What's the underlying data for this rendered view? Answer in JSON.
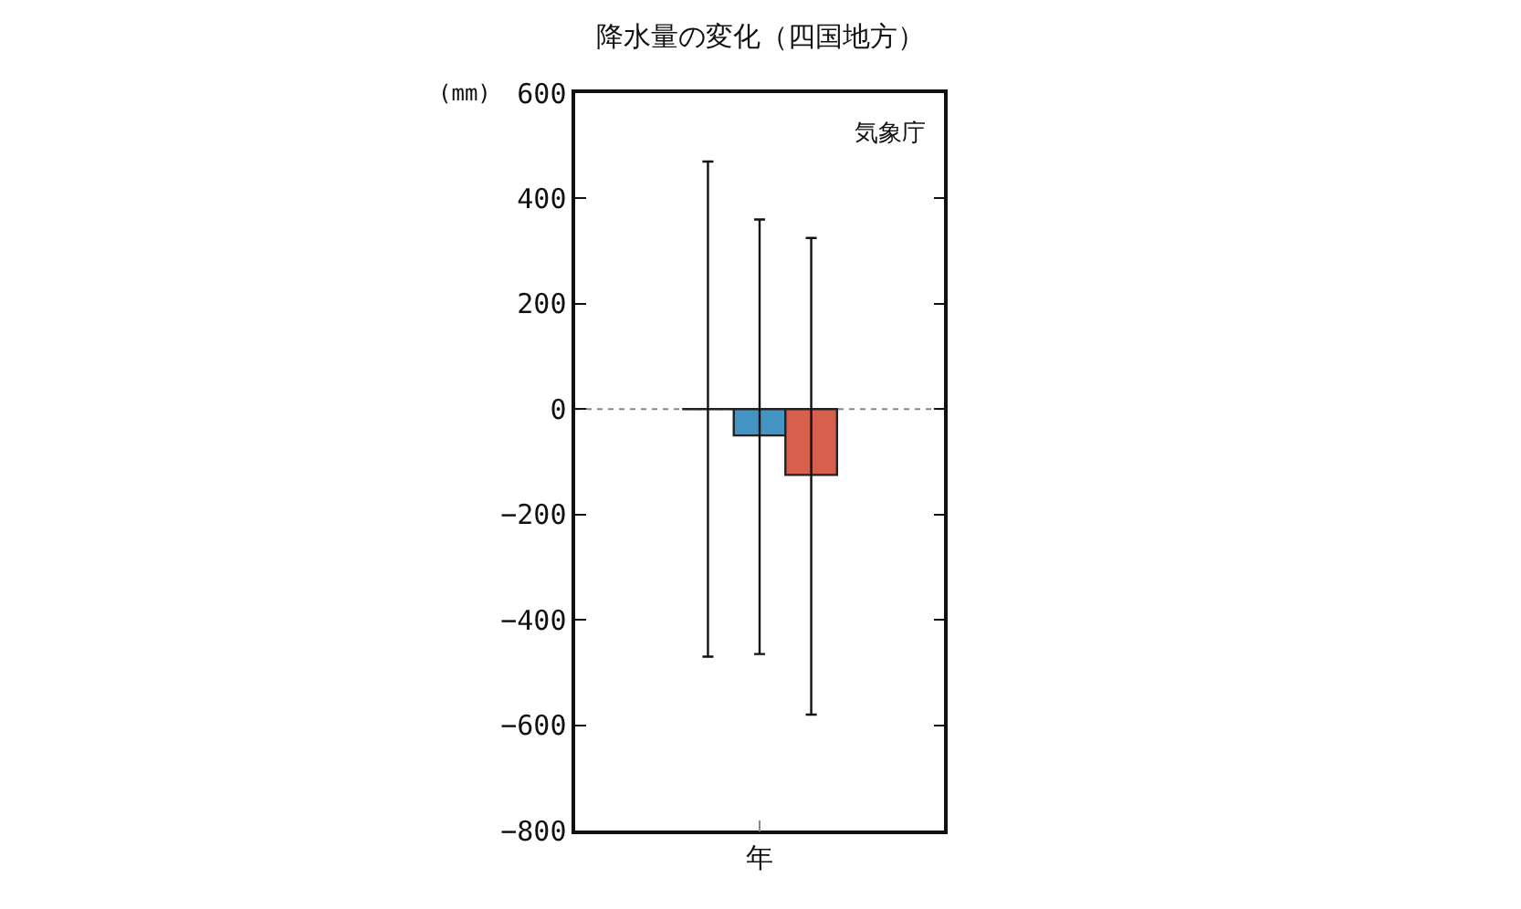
{
  "chart_data": {
    "type": "bar",
    "title": "降水量の変化（四国地方）",
    "ylabel": "(mm)",
    "annotations": [
      "気象庁"
    ],
    "categories": [
      "年"
    ],
    "series": [
      {
        "color": "#222222",
        "values": [
          0
        ],
        "errors": [
          [
            -470,
            470
          ]
        ]
      },
      {
        "color": "#4393c3",
        "values": [
          -50
        ],
        "errors": [
          [
            -465,
            360
          ]
        ]
      },
      {
        "color": "#d6604d",
        "values": [
          -125
        ],
        "errors": [
          [
            -580,
            325
          ]
        ]
      }
    ],
    "ylim": [
      -800,
      600
    ],
    "yticks": [
      -800,
      -600,
      -400,
      -200,
      0,
      200,
      400,
      600
    ],
    "grid": false,
    "ref_lines": [
      {
        "axis": "y",
        "value": 0,
        "color": "#888888",
        "line_style": "dotted"
      }
    ]
  }
}
